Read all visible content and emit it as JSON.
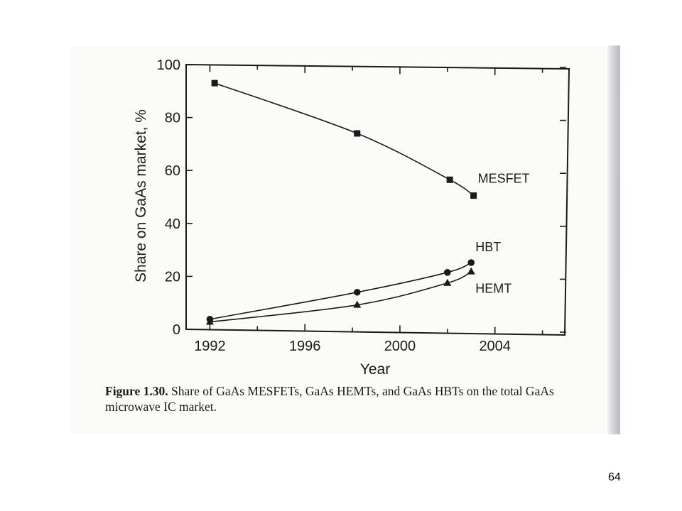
{
  "chart_data": {
    "type": "line",
    "x_label": "Year",
    "y_label": "Share on GaAs market, %",
    "xlim": [
      1991,
      2007
    ],
    "ylim": [
      0,
      100
    ],
    "x_ticks": [
      1992,
      1996,
      2000,
      2004
    ],
    "y_ticks": [
      0,
      20,
      40,
      60,
      80,
      100
    ],
    "grid": false,
    "series": [
      {
        "name": "MESFET",
        "marker": "square",
        "x": [
          1992.2,
          1998.2,
          2002.1,
          2003.1
        ],
        "y": [
          93,
          74,
          56.5,
          50.5
        ]
      },
      {
        "name": "HBT",
        "marker": "circle",
        "x": [
          1992,
          1998.2,
          2002,
          2003
        ],
        "y": [
          3.8,
          14,
          21.5,
          25.2
        ]
      },
      {
        "name": "HEMT",
        "marker": "triangle",
        "x": [
          1992,
          1998.2,
          2002,
          2003
        ],
        "y": [
          2.8,
          9.2,
          17.5,
          21.8
        ]
      }
    ]
  },
  "caption": {
    "label": "Figure 1.30.",
    "text": " Share of GaAs MESFETs, GaAs HEMTs, and GaAs HBTs on the total GaAs microwave IC market."
  },
  "page_number": "64",
  "colors": {
    "ink": "#1a1a1a",
    "paper": "#fbfbf9"
  }
}
